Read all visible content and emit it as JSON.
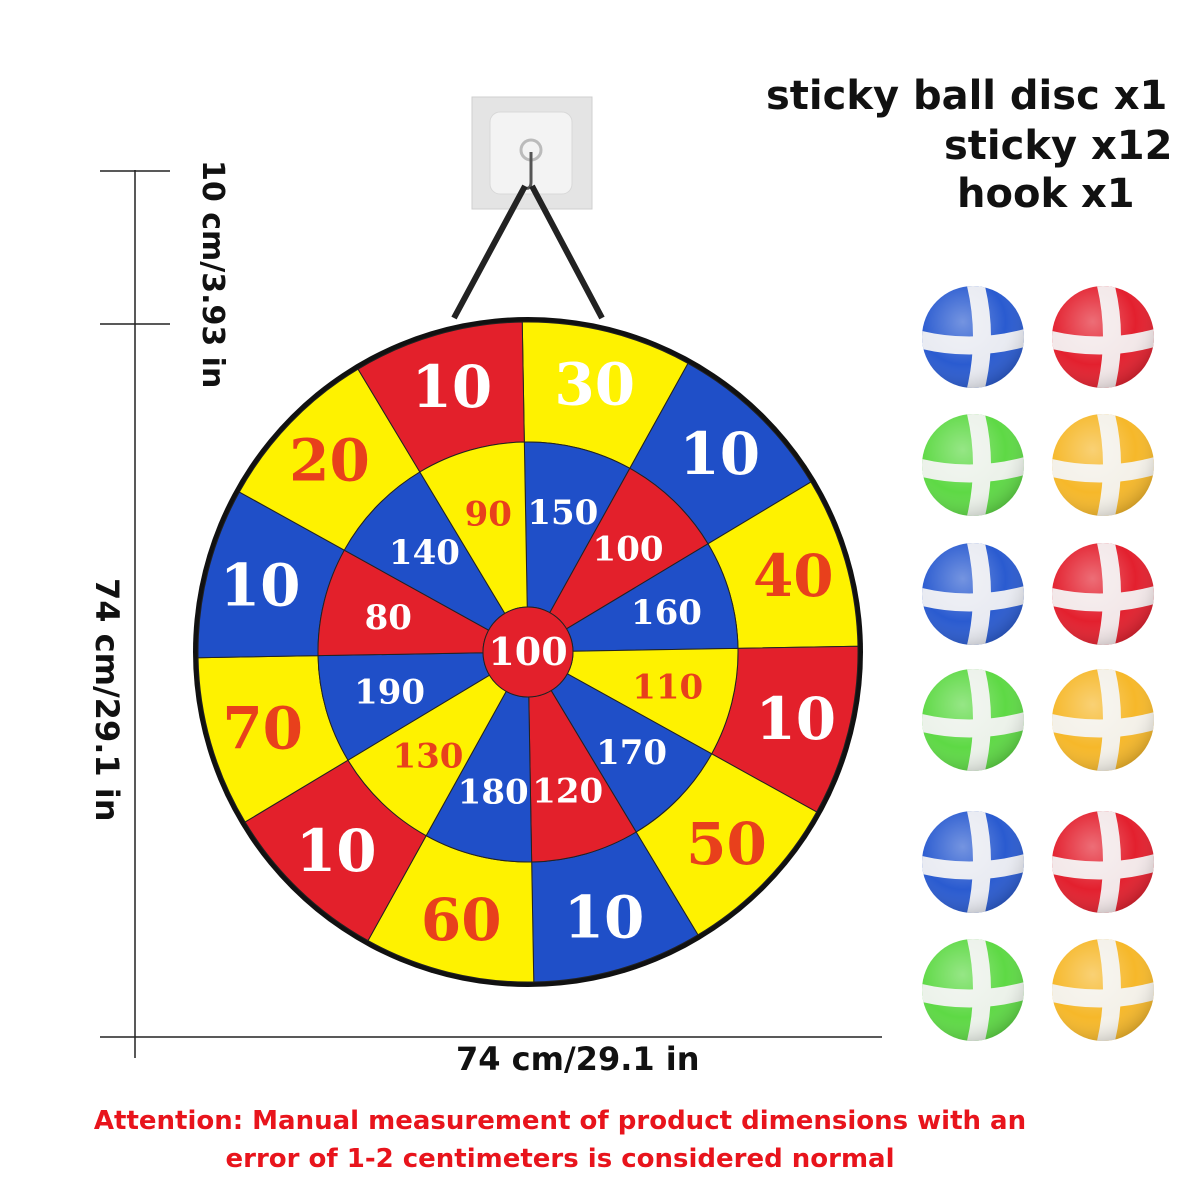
{
  "contents": {
    "line1": "sticky ball disc  x1",
    "line2": "sticky x12",
    "line3": "hook x1"
  },
  "dimensions": {
    "hook_drop": "10 cm/3.93 in",
    "height": "74 cm/29.1 in",
    "width": "74 cm/29.1 in"
  },
  "notice": {
    "line1": "Attention: Manual measurement of product dimensions with an",
    "line2": "error of 1-2 centimeters is considered normal"
  },
  "colors": {
    "blue": "#1f4fc8",
    "red": "#e3202b",
    "yellow": "#fef200",
    "white": "#ffffff",
    "orange_text": "#e8401c"
  },
  "board": {
    "outer_ring": [
      {
        "label": "30",
        "fill": "yellow",
        "text": "white"
      },
      {
        "label": "10",
        "fill": "blue",
        "text": "white"
      },
      {
        "label": "40",
        "fill": "yellow",
        "text": "orange_text"
      },
      {
        "label": "10",
        "fill": "red",
        "text": "white"
      },
      {
        "label": "50",
        "fill": "yellow",
        "text": "orange_text"
      },
      {
        "label": "10",
        "fill": "blue",
        "text": "white"
      },
      {
        "label": "60",
        "fill": "yellow",
        "text": "orange_text"
      },
      {
        "label": "10",
        "fill": "red",
        "text": "white"
      },
      {
        "label": "70",
        "fill": "yellow",
        "text": "orange_text"
      },
      {
        "label": "10",
        "fill": "blue",
        "text": "white"
      },
      {
        "label": "20",
        "fill": "yellow",
        "text": "orange_text"
      },
      {
        "label": "10",
        "fill": "red",
        "text": "white"
      }
    ],
    "inner_ring": [
      {
        "label": "150",
        "fill": "blue",
        "text": "white"
      },
      {
        "label": "100",
        "fill": "red",
        "text": "white"
      },
      {
        "label": "160",
        "fill": "blue",
        "text": "white"
      },
      {
        "label": "110",
        "fill": "yellow",
        "text": "orange_text"
      },
      {
        "label": "170",
        "fill": "blue",
        "text": "white"
      },
      {
        "label": "120",
        "fill": "red",
        "text": "white"
      },
      {
        "label": "180",
        "fill": "blue",
        "text": "white"
      },
      {
        "label": "130",
        "fill": "yellow",
        "text": "orange_text"
      },
      {
        "label": "190",
        "fill": "blue",
        "text": "white"
      },
      {
        "label": "80",
        "fill": "red",
        "text": "white"
      },
      {
        "label": "140",
        "fill": "blue",
        "text": "white"
      },
      {
        "label": "90",
        "fill": "yellow",
        "text": "orange_text"
      }
    ],
    "bullseye": "100"
  },
  "balls": [
    {
      "color": "#2a5bd0"
    },
    {
      "color": "#e3202e"
    },
    {
      "color": "#5ed945"
    },
    {
      "color": "#f6b82a"
    },
    {
      "color": "#2a5bd0"
    },
    {
      "color": "#e3202e"
    },
    {
      "color": "#5ed945"
    },
    {
      "color": "#f6b82a"
    },
    {
      "color": "#2a5bd0"
    },
    {
      "color": "#e3202e"
    },
    {
      "color": "#5ed945"
    },
    {
      "color": "#f6b82a"
    }
  ]
}
